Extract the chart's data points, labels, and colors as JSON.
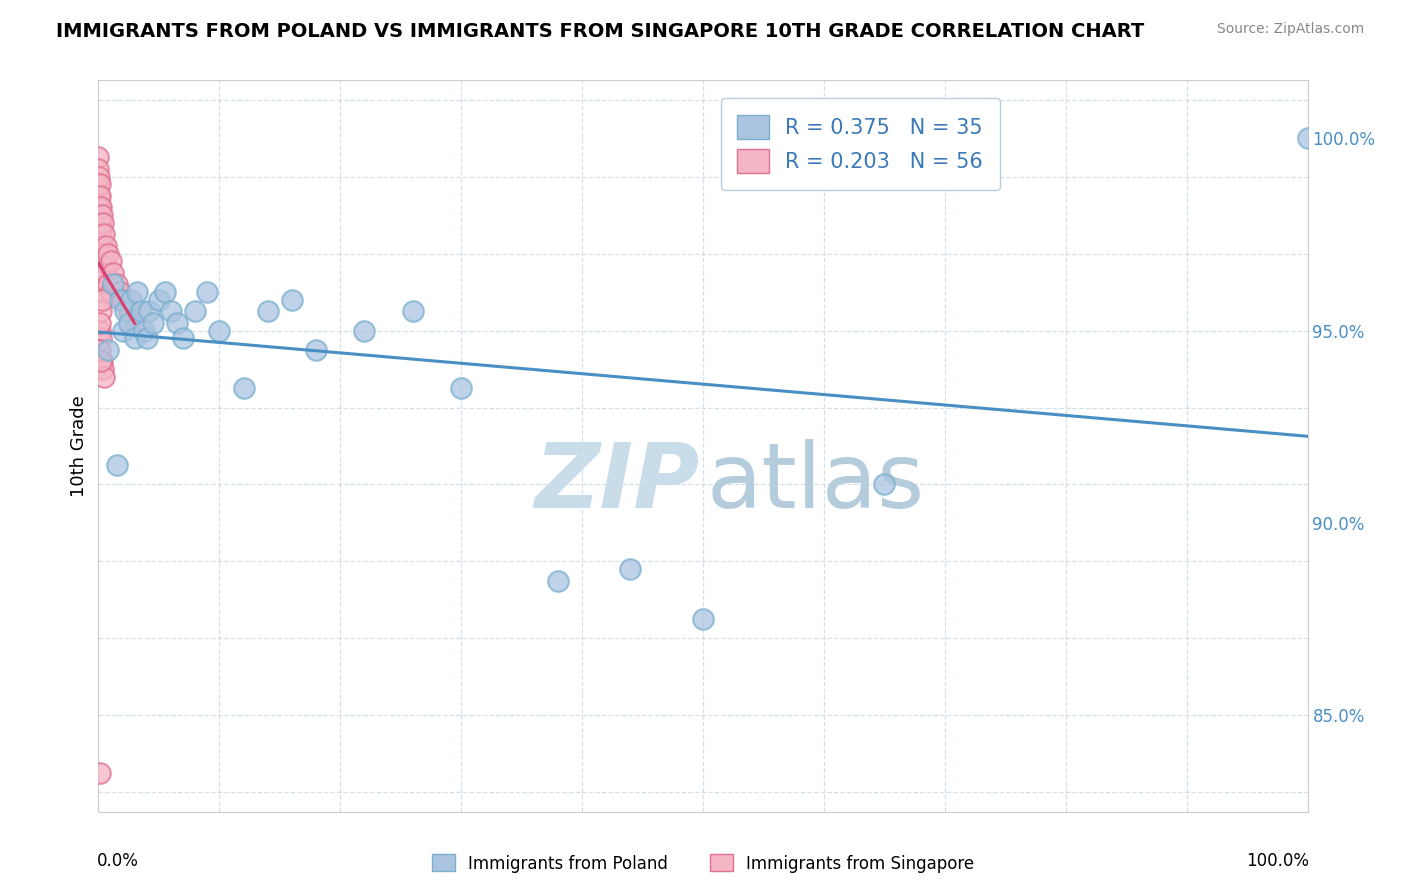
{
  "title": "IMMIGRANTS FROM POLAND VS IMMIGRANTS FROM SINGAPORE 10TH GRADE CORRELATION CHART",
  "source": "Source: ZipAtlas.com",
  "ylabel": "10th Grade",
  "xlim": [
    0.0,
    1.0
  ],
  "ylim": [
    82.5,
    101.5
  ],
  "poland_R": 0.375,
  "poland_N": 35,
  "singapore_R": 0.203,
  "singapore_N": 56,
  "poland_color": "#aac4e0",
  "poland_edge_color": "#7aafd0",
  "singapore_color": "#f4b5c5",
  "singapore_edge_color": "#e07090",
  "poland_line_color": "#4a8fc4",
  "singapore_line_color": "#d84070",
  "legend_text_color": "#3a7ab8",
  "right_tick_color": "#4a8fc4",
  "grid_color": "#ccdde8",
  "watermark_zip_color": "#c8dcea",
  "watermark_atlas_color": "#b5ccdc",
  "poland_x": [
    0.008,
    0.012,
    0.015,
    0.018,
    0.02,
    0.022,
    0.025,
    0.027,
    0.03,
    0.032,
    0.035,
    0.038,
    0.04,
    0.042,
    0.045,
    0.05,
    0.055,
    0.06,
    0.065,
    0.07,
    0.08,
    0.09,
    0.1,
    0.12,
    0.14,
    0.16,
    0.18,
    0.22,
    0.26,
    0.3,
    0.38,
    0.44,
    0.5,
    0.65,
    1.0
  ],
  "poland_y": [
    94.5,
    96.2,
    91.5,
    95.8,
    95.0,
    95.5,
    95.2,
    95.8,
    94.8,
    96.0,
    95.5,
    95.0,
    94.8,
    95.5,
    95.2,
    95.8,
    96.0,
    95.5,
    95.2,
    94.8,
    95.5,
    96.0,
    95.0,
    93.5,
    95.5,
    95.8,
    94.5,
    95.0,
    95.5,
    93.5,
    88.5,
    88.8,
    87.5,
    91.0,
    100.0
  ],
  "singapore_x": [
    0.0,
    0.0,
    0.0,
    0.0,
    0.0,
    0.0,
    0.0,
    0.0,
    0.0,
    0.0,
    0.0005,
    0.0005,
    0.0005,
    0.0005,
    0.0005,
    0.001,
    0.001,
    0.001,
    0.001,
    0.001,
    0.0015,
    0.0015,
    0.0015,
    0.002,
    0.002,
    0.002,
    0.003,
    0.003,
    0.004,
    0.004,
    0.005,
    0.005,
    0.006,
    0.006,
    0.008,
    0.008,
    0.01,
    0.01,
    0.012,
    0.015,
    0.018,
    0.02,
    0.025,
    0.03,
    0.001,
    0.002,
    0.0005,
    0.003,
    0.004,
    0.005,
    0.002,
    0.001,
    0.003,
    0.001,
    0.002,
    0.001
  ],
  "singapore_y": [
    99.5,
    99.2,
    98.8,
    98.5,
    98.2,
    97.8,
    97.5,
    97.2,
    96.8,
    96.2,
    99.0,
    98.5,
    97.8,
    97.0,
    96.5,
    98.8,
    98.2,
    97.5,
    96.8,
    96.0,
    98.5,
    97.8,
    97.0,
    98.2,
    97.5,
    96.8,
    98.0,
    97.2,
    97.8,
    97.0,
    97.5,
    96.8,
    97.2,
    96.5,
    97.0,
    96.2,
    96.8,
    96.0,
    96.5,
    96.2,
    96.0,
    95.8,
    95.5,
    95.2,
    95.0,
    94.8,
    94.5,
    94.2,
    94.0,
    93.8,
    95.5,
    95.2,
    95.8,
    94.5,
    94.2,
    83.5
  ]
}
